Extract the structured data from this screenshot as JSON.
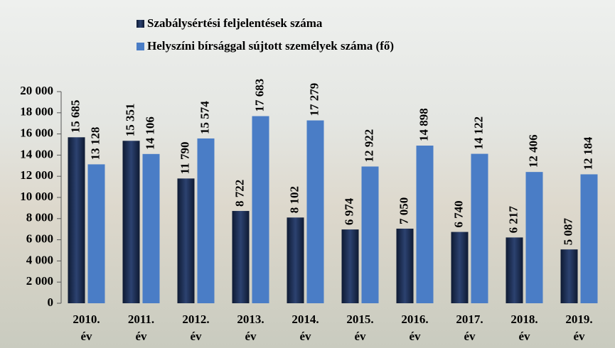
{
  "chart_data": {
    "type": "bar",
    "categories": [
      "2010. év",
      "2011. év",
      "2012. év",
      "2013. év",
      "2014. év",
      "2015. év",
      "2016. év",
      "2017. év",
      "2018. év",
      "2019. év"
    ],
    "series": [
      {
        "name": "Szabálysértési feljelentések száma",
        "color": "#1b2c4e",
        "values": [
          15685,
          15351,
          11790,
          8722,
          8102,
          6974,
          7050,
          6740,
          6217,
          5087
        ],
        "value_labels": [
          "15 685",
          "15 351",
          "11 790",
          "8 722",
          "8 102",
          "6 974",
          "7 050",
          "6 740",
          "6 217",
          "5 087"
        ]
      },
      {
        "name": "Helyszíni bírsággal sújtott személyek száma (fő)",
        "color": "#4a7dc6",
        "values": [
          13128,
          14106,
          15574,
          17683,
          17279,
          12922,
          14898,
          14122,
          12406,
          12184
        ],
        "value_labels": [
          "13 128",
          "14 106",
          "15 574",
          "17 683",
          "17 279",
          "12 922",
          "14 898",
          "14 122",
          "12 406",
          "12 184"
        ]
      }
    ],
    "ylim": [
      0,
      20000
    ],
    "yticks": [
      0,
      {
        "value": 2000,
        "label": "2 000"
      },
      {
        "value": 4000,
        "label": "4 000"
      },
      {
        "value": 6000,
        "label": "6 000"
      },
      {
        "value": 8000,
        "label": "8 000"
      },
      {
        "value": 10000,
        "label": "10 000"
      },
      {
        "value": 12000,
        "label": "12 000"
      },
      {
        "value": 14000,
        "label": "14 000"
      },
      {
        "value": 16000,
        "label": "16 000"
      },
      {
        "value": 18000,
        "label": "18 000"
      },
      {
        "value": 20000,
        "label": "20 000"
      }
    ],
    "legend": "top"
  }
}
